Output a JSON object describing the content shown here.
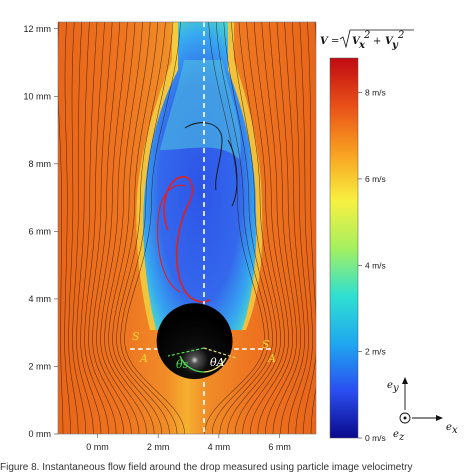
{
  "chart_data": {
    "type": "heatmap",
    "title": "",
    "xlabel": "",
    "ylabel": "",
    "x_ticks": [
      "0 mm",
      "2 mm",
      "4 mm",
      "6 mm"
    ],
    "x_tick_values": [
      0,
      2,
      4,
      6
    ],
    "y_ticks": [
      "0 mm",
      "2 mm",
      "4 mm",
      "6 mm",
      "8 mm",
      "10 mm",
      "12 mm"
    ],
    "y_tick_values": [
      0,
      2,
      4,
      6,
      8,
      10,
      12
    ],
    "xlim": [
      -1.3,
      7.2
    ],
    "ylim": [
      0,
      12.2
    ],
    "colorbar": {
      "label": "V = √(Vx² + Vy²)",
      "label_parts": {
        "v": "V",
        "eq": "=",
        "vx": "V",
        "vx_sub": "x",
        "vy": "V",
        "vy_sub": "y",
        "sq": "2",
        "plus": "+"
      },
      "ticks": [
        "0 m/s",
        "2 m/s",
        "4 m/s",
        "6 m/s",
        "8 m/s"
      ],
      "tick_values": [
        0,
        2,
        4,
        6,
        8
      ],
      "range": [
        0,
        8.8
      ],
      "colormap": [
        "#0a0a8c",
        "#2a4ff0",
        "#1fa8f0",
        "#2fe0d0",
        "#a6f060",
        "#f8f040",
        "#f8a020",
        "#e85018",
        "#c00a12"
      ]
    },
    "sphere": {
      "center_x": 3.2,
      "center_y": 2.75,
      "radius": 1.25
    },
    "annotations": [
      "S",
      "A",
      "θs",
      "θA",
      "S",
      "A"
    ],
    "axes_glyph": {
      "ey": "e",
      "ey_sub": "y",
      "ez": "e",
      "ez_sub": "z",
      "ex": "e",
      "ex_sub": "x"
    }
  },
  "caption": "Figure 8. Instantaneous flow field around the drop measured using particle image velocimetry"
}
